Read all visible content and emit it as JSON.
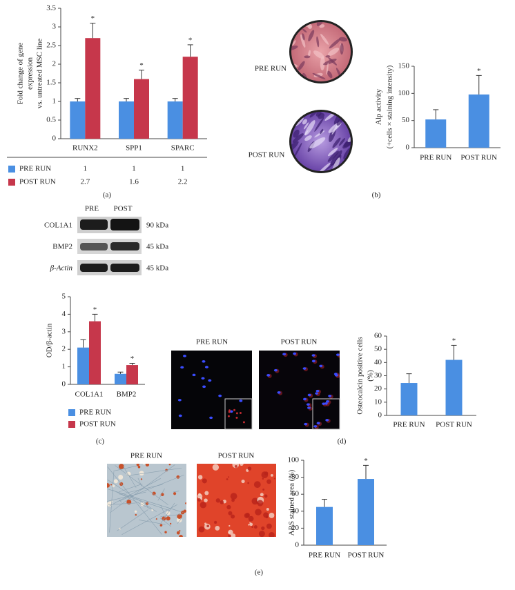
{
  "chart_data": [
    {
      "type": "bar",
      "panel_label": "(a)",
      "ylabel": [
        "Fold change of gene",
        "expression",
        "vs. untreated MSC line"
      ],
      "categories": [
        "RUNX2",
        "SPP1",
        "SPARC"
      ],
      "series": [
        {
          "name": "PRE RUN",
          "color": "#4a8fe2",
          "values": [
            1,
            1,
            1
          ],
          "errors": [
            0.08,
            0.08,
            0.08
          ],
          "significance": [
            null,
            null,
            null
          ]
        },
        {
          "name": "POST RUN",
          "color": "#c6374b",
          "values": [
            2.7,
            1.6,
            2.2
          ],
          "errors": [
            0.4,
            0.24,
            0.32
          ],
          "significance": [
            "*",
            "*",
            "*"
          ]
        }
      ],
      "ylim": [
        0,
        3.5
      ],
      "yticks": [
        0,
        0.5,
        1,
        1.5,
        2,
        2.5,
        3,
        3.5
      ],
      "data_table": true
    },
    {
      "type": "bar",
      "panel_label": "(b)",
      "image_labels": [
        "PRE RUN",
        "POST RUN"
      ],
      "ylabel": [
        "Alp activity",
        "(+cells × staining intensity)"
      ],
      "categories": [
        "PRE RUN",
        "POST RUN"
      ],
      "values": [
        52,
        98
      ],
      "errors": [
        18,
        35
      ],
      "significance": [
        null,
        "*"
      ],
      "color": "#4a8fe2",
      "ylim": [
        0,
        150
      ],
      "yticks": [
        0,
        50,
        100,
        150
      ]
    },
    {
      "type": "bar",
      "panel_label": "(c)",
      "blot": {
        "lanes": [
          "PRE",
          "POST"
        ],
        "rows": [
          {
            "protein": "COL1A1",
            "size": "90 kDa"
          },
          {
            "protein": "BMP2",
            "size": "45 kDa"
          },
          {
            "protein": "β-Actin",
            "size": "45 kDa"
          }
        ]
      },
      "ylabel": [
        "OD/β-actin"
      ],
      "categories": [
        "COL1A1",
        "BMP2"
      ],
      "series": [
        {
          "name": "PRE RUN",
          "color": "#4a8fe2",
          "values": [
            2.1,
            0.6
          ],
          "errors": [
            0.45,
            0.1
          ],
          "significance": [
            null,
            null
          ]
        },
        {
          "name": "POST RUN",
          "color": "#c6374b",
          "values": [
            3.6,
            1.1
          ],
          "errors": [
            0.4,
            0.1
          ],
          "significance": [
            "*",
            "*"
          ]
        }
      ],
      "ylim": [
        0,
        5
      ],
      "yticks": [
        0,
        1,
        2,
        3,
        4,
        5
      ],
      "legend": "bottom"
    },
    {
      "type": "bar",
      "panel_label": "(d)",
      "image_labels": [
        "PRE RUN",
        "POST RUN"
      ],
      "ylabel": [
        "Osteocalcin positive cells",
        "(%)"
      ],
      "categories": [
        "PRE RUN",
        "POST RUN"
      ],
      "values": [
        24.5,
        42
      ],
      "errors": [
        7,
        11
      ],
      "significance": [
        null,
        "*"
      ],
      "color": "#4a8fe2",
      "ylim": [
        0,
        60
      ],
      "yticks": [
        0,
        10,
        20,
        30,
        40,
        50,
        60
      ]
    },
    {
      "type": "bar",
      "panel_label": "(e)",
      "image_labels": [
        "PRE RUN",
        "POST RUN"
      ],
      "ylabel": [
        "ARS stained area (%)"
      ],
      "categories": [
        "PRE RUN",
        "POST RUN"
      ],
      "values": [
        45,
        78
      ],
      "errors": [
        9,
        16
      ],
      "significance": [
        null,
        "*"
      ],
      "color": "#4a8fe2",
      "ylim": [
        0,
        100
      ],
      "yticks": [
        0,
        20,
        40,
        60,
        80,
        100
      ]
    }
  ]
}
